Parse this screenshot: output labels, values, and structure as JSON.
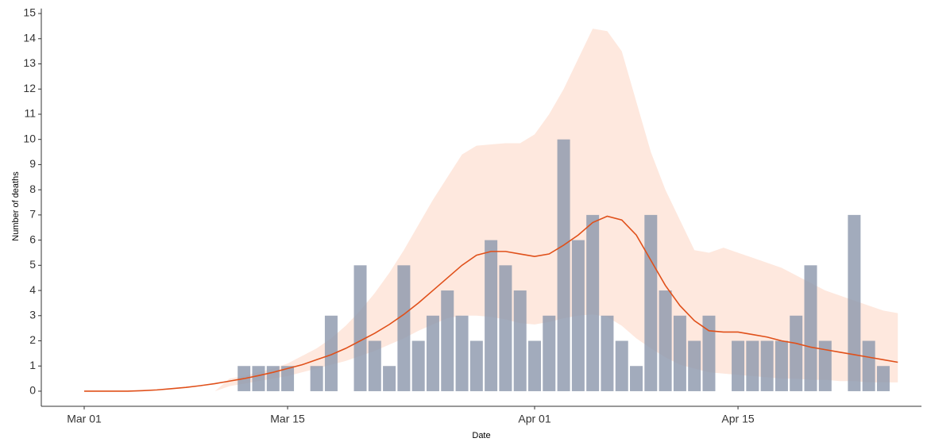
{
  "chart_data": {
    "type": "combo",
    "x_label": "Date",
    "y_label": "Number of deaths",
    "x": [
      "Mar 01",
      "Mar 02",
      "Mar 03",
      "Mar 04",
      "Mar 05",
      "Mar 06",
      "Mar 07",
      "Mar 08",
      "Mar 09",
      "Mar 10",
      "Mar 11",
      "Mar 12",
      "Mar 13",
      "Mar 14",
      "Mar 15",
      "Mar 16",
      "Mar 17",
      "Mar 18",
      "Mar 19",
      "Mar 20",
      "Mar 21",
      "Mar 22",
      "Mar 23",
      "Mar 24",
      "Mar 25",
      "Mar 26",
      "Mar 27",
      "Mar 28",
      "Mar 29",
      "Mar 30",
      "Mar 31",
      "Apr 01",
      "Apr 02",
      "Apr 03",
      "Apr 04",
      "Apr 05",
      "Apr 06",
      "Apr 07",
      "Apr 08",
      "Apr 09",
      "Apr 10",
      "Apr 11",
      "Apr 12",
      "Apr 13",
      "Apr 14",
      "Apr 15",
      "Apr 16",
      "Apr 17",
      "Apr 18",
      "Apr 19",
      "Apr 20",
      "Apr 21",
      "Apr 22",
      "Apr 23",
      "Apr 24",
      "Apr 25",
      "Apr 26"
    ],
    "xticks": [
      "Mar 01",
      "Mar 15",
      "Apr 01",
      "Apr 15"
    ],
    "ylim": [
      -0.6,
      15.2
    ],
    "yticks": [
      0,
      1,
      2,
      3,
      4,
      5,
      6,
      7,
      8,
      9,
      10,
      11,
      12,
      13,
      14,
      15
    ],
    "series": [
      {
        "type": "band",
        "color": "#fde0d3",
        "lower": [
          0,
          0,
          0,
          0,
          0,
          0,
          0,
          0,
          0,
          0,
          0.2,
          0.3,
          0.4,
          0.5,
          0.6,
          0.75,
          0.9,
          1.05,
          1.2,
          1.4,
          1.6,
          1.85,
          2.1,
          2.4,
          2.65,
          2.9,
          3.0,
          3.0,
          2.95,
          2.85,
          2.7,
          2.65,
          2.75,
          2.9,
          3.0,
          3.05,
          2.95,
          2.6,
          2.1,
          1.7,
          1.35,
          1.05,
          0.9,
          0.75,
          0.7,
          0.65,
          0.6,
          0.55,
          0.5,
          0.5,
          0.45,
          0.45,
          0.4,
          0.4,
          0.35,
          0.35,
          0.35
        ],
        "upper": [
          0,
          0,
          0,
          0,
          0,
          0,
          0,
          0,
          0,
          0,
          0.5,
          0.6,
          0.75,
          0.9,
          1.1,
          1.4,
          1.7,
          2.1,
          2.6,
          3.2,
          3.9,
          4.7,
          5.6,
          6.6,
          7.6,
          8.5,
          9.4,
          9.75,
          9.8,
          9.85,
          9.85,
          10.2,
          11.0,
          12.0,
          13.2,
          14.4,
          14.3,
          13.5,
          11.5,
          9.5,
          8.0,
          6.8,
          5.6,
          5.5,
          5.7,
          5.5,
          5.3,
          5.1,
          4.9,
          4.6,
          4.3,
          4.0,
          3.8,
          3.6,
          3.4,
          3.2,
          3.1
        ]
      },
      {
        "type": "bar",
        "color": "#8e99ad",
        "values": [
          null,
          null,
          null,
          null,
          null,
          null,
          null,
          null,
          null,
          null,
          null,
          1,
          1,
          1,
          1,
          null,
          1,
          3,
          null,
          5,
          2,
          1,
          5,
          2,
          3,
          4,
          3,
          2,
          6,
          5,
          4,
          2,
          3,
          10,
          6,
          7,
          3,
          2,
          1,
          7,
          4,
          3,
          2,
          3,
          null,
          2,
          2,
          2,
          2,
          3,
          5,
          2,
          null,
          7,
          2,
          1,
          null
        ]
      },
      {
        "type": "line",
        "color": "#e0501a",
        "values": [
          0,
          0,
          0,
          0,
          0.02,
          0.05,
          0.1,
          0.15,
          0.22,
          0.3,
          0.4,
          0.5,
          0.62,
          0.75,
          0.9,
          1.05,
          1.25,
          1.45,
          1.7,
          2.0,
          2.3,
          2.65,
          3.05,
          3.5,
          4.0,
          4.5,
          5.0,
          5.4,
          5.55,
          5.55,
          5.45,
          5.35,
          5.45,
          5.8,
          6.2,
          6.7,
          6.95,
          6.8,
          6.2,
          5.2,
          4.2,
          3.4,
          2.8,
          2.4,
          2.35,
          2.35,
          2.25,
          2.15,
          2.0,
          1.9,
          1.75,
          1.65,
          1.55,
          1.45,
          1.35,
          1.25,
          1.15
        ]
      }
    ]
  }
}
